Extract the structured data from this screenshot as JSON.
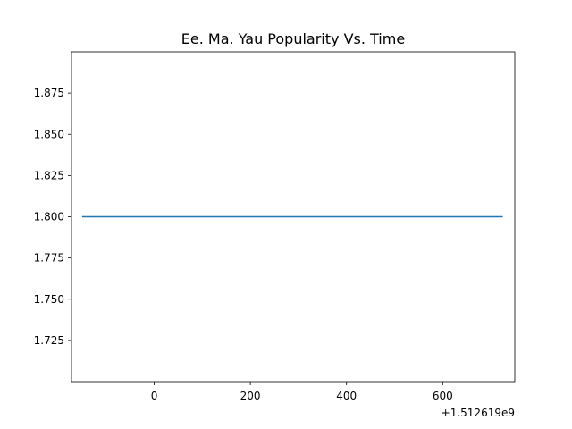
{
  "chart_data": {
    "type": "line",
    "title": "Ee. Ma. Yau Popularity Vs. Time",
    "xlabel": "",
    "ylabel": "",
    "x_offset_label": "+1.512619e9",
    "x_offset": 1512619000,
    "xlim": [
      1512618828,
      1512619750
    ],
    "ylim": [
      1.7,
      1.9
    ],
    "x_ticks": [
      0,
      200,
      400,
      600
    ],
    "y_ticks": [
      1.725,
      1.75,
      1.775,
      1.8,
      1.825,
      1.85,
      1.875
    ],
    "x_tick_labels": [
      "0",
      "200",
      "400",
      "600"
    ],
    "y_tick_labels": [
      "1.725",
      "1.750",
      "1.775",
      "1.800",
      "1.825",
      "1.850",
      "1.875"
    ],
    "grid": false,
    "legend": "none",
    "series": [
      {
        "color": "#1f77b4",
        "x": [
          1512618850,
          1512619725
        ],
        "y": [
          1.8,
          1.8
        ]
      }
    ]
  }
}
